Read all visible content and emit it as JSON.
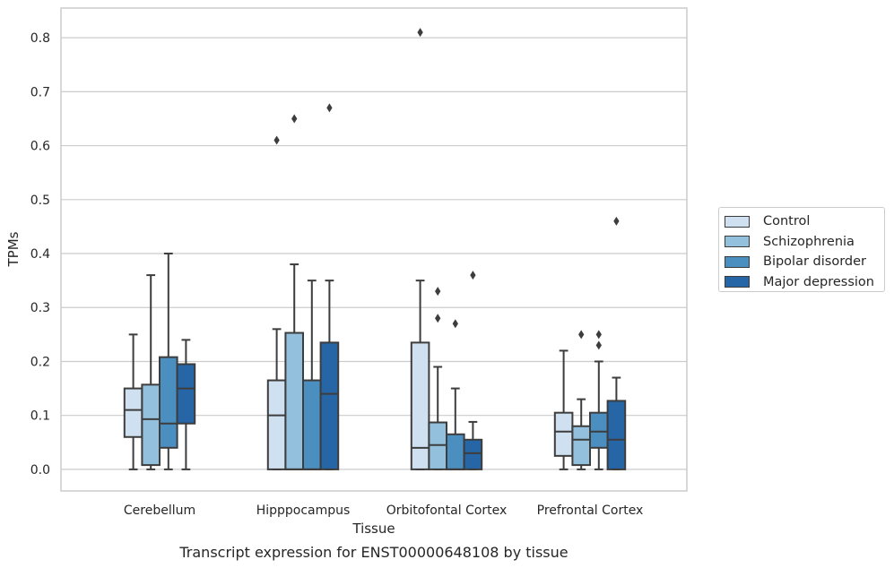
{
  "chart_data": {
    "type": "box",
    "title": "",
    "caption": "Transcript expression for ENST00000648108 by tissue",
    "xlabel": "Tissue",
    "ylabel": "TPMs",
    "ylim": [
      -0.04,
      0.855
    ],
    "yticks": [
      "0.0",
      "0.1",
      "0.2",
      "0.3",
      "0.4",
      "0.5",
      "0.6",
      "0.7",
      "0.8"
    ],
    "grid": "horizontal",
    "legend_position": "right",
    "categories": [
      "Cerebellum",
      "Hipppocampus",
      "Orbitofontal Cortex",
      "Prefrontal Cortex"
    ],
    "series": [
      {
        "name": "Control",
        "color": "#cfe0f0",
        "boxes": [
          {
            "min": 0.0,
            "q1": 0.06,
            "median": 0.11,
            "q3": 0.15,
            "max": 0.25,
            "outliers": []
          },
          {
            "min": 0.0,
            "q1": 0.0,
            "median": 0.1,
            "q3": 0.165,
            "max": 0.26,
            "outliers": [
              0.61
            ]
          },
          {
            "min": 0.0,
            "q1": 0.0,
            "median": 0.04,
            "q3": 0.235,
            "max": 0.35,
            "outliers": [
              0.81
            ]
          },
          {
            "min": 0.0,
            "q1": 0.025,
            "median": 0.07,
            "q3": 0.105,
            "max": 0.22,
            "outliers": []
          }
        ]
      },
      {
        "name": "Schizophrenia",
        "color": "#93c0dd",
        "boxes": [
          {
            "min": 0.0,
            "q1": 0.008,
            "median": 0.093,
            "q3": 0.157,
            "max": 0.36,
            "outliers": []
          },
          {
            "min": 0.0,
            "q1": 0.0,
            "median": 0.0,
            "q3": 0.253,
            "max": 0.38,
            "outliers": [
              0.65
            ]
          },
          {
            "min": 0.0,
            "q1": 0.0,
            "median": 0.045,
            "q3": 0.087,
            "max": 0.19,
            "outliers": [
              0.28,
              0.33
            ]
          },
          {
            "min": 0.0,
            "q1": 0.008,
            "median": 0.055,
            "q3": 0.08,
            "max": 0.13,
            "outliers": [
              0.25
            ]
          }
        ]
      },
      {
        "name": "Bipolar disorder",
        "color": "#4b8fc0",
        "boxes": [
          {
            "min": 0.0,
            "q1": 0.04,
            "median": 0.085,
            "q3": 0.208,
            "max": 0.4,
            "outliers": []
          },
          {
            "min": 0.0,
            "q1": 0.0,
            "median": 0.0,
            "q3": 0.165,
            "max": 0.35,
            "outliers": []
          },
          {
            "min": 0.0,
            "q1": 0.0,
            "median": 0.0,
            "q3": 0.065,
            "max": 0.15,
            "outliers": [
              0.27
            ]
          },
          {
            "min": 0.0,
            "q1": 0.04,
            "median": 0.07,
            "q3": 0.105,
            "max": 0.2,
            "outliers": [
              0.23,
              0.25
            ]
          }
        ]
      },
      {
        "name": "Major depression",
        "color": "#2666a6",
        "boxes": [
          {
            "min": 0.0,
            "q1": 0.085,
            "median": 0.15,
            "q3": 0.195,
            "max": 0.24,
            "outliers": []
          },
          {
            "min": 0.0,
            "q1": 0.0,
            "median": 0.14,
            "q3": 0.235,
            "max": 0.35,
            "outliers": [
              0.67
            ]
          },
          {
            "min": 0.0,
            "q1": 0.0,
            "median": 0.03,
            "q3": 0.055,
            "max": 0.088,
            "outliers": [
              0.36
            ]
          },
          {
            "min": 0.0,
            "q1": 0.0,
            "median": 0.055,
            "q3": 0.127,
            "max": 0.17,
            "outliers": [
              0.46
            ]
          }
        ]
      }
    ]
  }
}
